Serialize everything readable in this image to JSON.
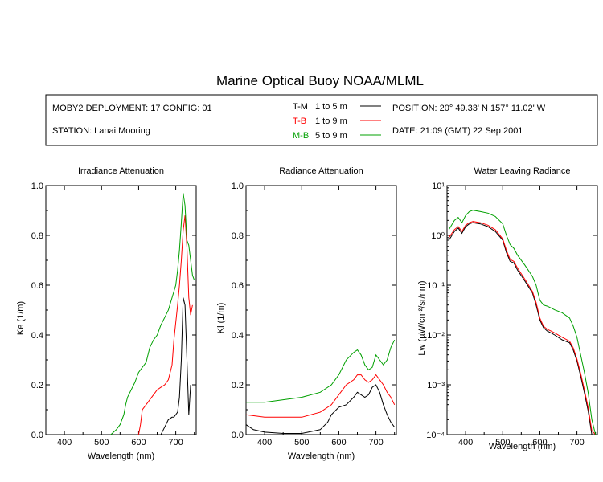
{
  "title": "Marine Optical Buoy NOAA/MLML",
  "info": {
    "deployment": "MOBY2 DEPLOYMENT: 17 CONFIG: 01",
    "station": "STATION: Lanai Mooring",
    "position": "POSITION: 20° 49.33' N   157° 11.02' W",
    "date": "DATE: 21:09 (GMT) 22 Sep 2001"
  },
  "legend": [
    {
      "code": "T-M",
      "range": "1 to 5  m",
      "color": "#000000"
    },
    {
      "code": "T-B",
      "range": "1 to 9  m",
      "color": "#ff0000"
    },
    {
      "code": "M-B",
      "range": "5 to 9  m",
      "color": "#00a000"
    }
  ],
  "chart_data": [
    {
      "type": "line",
      "title": "Irradiance Attenuation",
      "xlabel": "Wavelength (nm)",
      "ylabel": "Ke  (1/m)",
      "xlim": [
        350,
        755
      ],
      "ylim": [
        0,
        1
      ],
      "xticks": [
        "400",
        "500",
        "600",
        "700"
      ],
      "yticks": [
        "0.0",
        "0.2",
        "0.4",
        "0.6",
        "0.8",
        "1.0"
      ],
      "series": [
        {
          "name": "T-M",
          "color": "#000000",
          "x": [
            660,
            670,
            680,
            690,
            695,
            700,
            705,
            710,
            715,
            720,
            725,
            730,
            735,
            740
          ],
          "y": [
            0.0,
            0.03,
            0.06,
            0.07,
            0.07,
            0.08,
            0.09,
            0.15,
            0.3,
            0.55,
            0.52,
            0.3,
            0.08,
            0.2
          ]
        },
        {
          "name": "T-B",
          "color": "#ff0000",
          "x": [
            600,
            605,
            610,
            620,
            630,
            640,
            650,
            660,
            670,
            680,
            690,
            695,
            700,
            705,
            710,
            715,
            720,
            725,
            730,
            735,
            740,
            745
          ],
          "y": [
            0.0,
            0.04,
            0.1,
            0.12,
            0.14,
            0.16,
            0.18,
            0.19,
            0.2,
            0.22,
            0.28,
            0.38,
            0.45,
            0.52,
            0.6,
            0.7,
            0.82,
            0.88,
            0.75,
            0.55,
            0.48,
            0.52
          ]
        },
        {
          "name": "M-B",
          "color": "#00a000",
          "x": [
            525,
            540,
            550,
            560,
            565,
            570,
            580,
            590,
            600,
            605,
            610,
            615,
            620,
            630,
            640,
            650,
            660,
            670,
            680,
            690,
            700,
            705,
            710,
            715,
            720,
            725,
            730,
            735,
            740,
            745,
            750
          ],
          "y": [
            0.0,
            0.02,
            0.04,
            0.08,
            0.12,
            0.15,
            0.18,
            0.21,
            0.25,
            0.26,
            0.27,
            0.28,
            0.29,
            0.35,
            0.38,
            0.4,
            0.44,
            0.47,
            0.5,
            0.55,
            0.6,
            0.66,
            0.74,
            0.85,
            0.97,
            0.92,
            0.78,
            0.76,
            0.7,
            0.64,
            0.62
          ]
        }
      ]
    },
    {
      "type": "line",
      "title": "Radiance Attenuation",
      "xlabel": "Wavelength (nm)",
      "ylabel": "Kl  (1/m)",
      "xlim": [
        350,
        755
      ],
      "ylim": [
        0,
        1
      ],
      "xticks": [
        "400",
        "500",
        "600",
        "700"
      ],
      "yticks": [
        "0.0",
        "0.2",
        "0.4",
        "0.6",
        "0.8",
        "1.0"
      ],
      "series": [
        {
          "name": "T-M",
          "color": "#000000",
          "x": [
            350,
            370,
            400,
            450,
            500,
            550,
            570,
            580,
            600,
            620,
            640,
            650,
            660,
            670,
            680,
            690,
            700,
            710,
            720,
            730,
            740,
            750
          ],
          "y": [
            0.04,
            0.02,
            0.01,
            0.005,
            0.005,
            0.02,
            0.05,
            0.08,
            0.11,
            0.12,
            0.15,
            0.17,
            0.16,
            0.15,
            0.16,
            0.19,
            0.2,
            0.17,
            0.12,
            0.08,
            0.05,
            0.03
          ]
        },
        {
          "name": "T-B",
          "color": "#ff0000",
          "x": [
            350,
            400,
            450,
            500,
            550,
            580,
            600,
            620,
            640,
            650,
            660,
            670,
            680,
            690,
            700,
            710,
            720,
            730,
            740,
            750
          ],
          "y": [
            0.08,
            0.07,
            0.07,
            0.07,
            0.09,
            0.12,
            0.16,
            0.2,
            0.22,
            0.24,
            0.24,
            0.22,
            0.21,
            0.22,
            0.24,
            0.22,
            0.2,
            0.17,
            0.15,
            0.12
          ]
        },
        {
          "name": "M-B",
          "color": "#00a000",
          "x": [
            350,
            400,
            450,
            500,
            550,
            580,
            600,
            620,
            640,
            650,
            660,
            670,
            680,
            690,
            700,
            710,
            720,
            730,
            740,
            750
          ],
          "y": [
            0.13,
            0.13,
            0.14,
            0.15,
            0.17,
            0.2,
            0.24,
            0.3,
            0.33,
            0.34,
            0.32,
            0.28,
            0.26,
            0.27,
            0.32,
            0.3,
            0.28,
            0.3,
            0.35,
            0.38
          ]
        }
      ]
    },
    {
      "type": "line",
      "title": "Water Leaving Radiance",
      "xlabel": "Wavelength (nm)",
      "ylabel": "Lw  (µW/cm²/sr/nm)",
      "yscale": "log",
      "xlim": [
        350,
        755
      ],
      "ylim": [
        0.0001,
        10
      ],
      "xticks": [
        "400",
        "500",
        "600",
        "700"
      ],
      "yticks": [
        "10⁻⁴",
        "10⁻³",
        "10⁻²",
        "10⁻¹",
        "10⁰",
        "10¹"
      ],
      "series": [
        {
          "name": "T-M",
          "color": "#000000",
          "x": [
            355,
            370,
            380,
            390,
            400,
            410,
            420,
            440,
            460,
            480,
            500,
            510,
            520,
            530,
            540,
            560,
            580,
            590,
            600,
            610,
            620,
            630,
            640,
            660,
            680,
            690,
            700,
            710,
            720,
            730,
            740,
            750
          ],
          "y": [
            0.8,
            1.2,
            1.4,
            1.1,
            1.5,
            1.7,
            1.8,
            1.7,
            1.5,
            1.2,
            0.8,
            0.45,
            0.3,
            0.28,
            0.2,
            0.12,
            0.07,
            0.04,
            0.02,
            0.014,
            0.012,
            0.011,
            0.01,
            0.008,
            0.007,
            0.005,
            0.003,
            0.0015,
            0.0007,
            0.0003,
            0.0001,
            0.0001
          ]
        },
        {
          "name": "T-B",
          "color": "#ff0000",
          "x": [
            355,
            370,
            380,
            390,
            400,
            410,
            420,
            440,
            460,
            480,
            500,
            510,
            520,
            530,
            540,
            560,
            580,
            590,
            600,
            610,
            620,
            630,
            640,
            660,
            680,
            690,
            700,
            710,
            720,
            730,
            740,
            750
          ],
          "y": [
            0.9,
            1.3,
            1.5,
            1.2,
            1.6,
            1.8,
            1.9,
            1.8,
            1.6,
            1.3,
            0.85,
            0.5,
            0.33,
            0.3,
            0.22,
            0.13,
            0.075,
            0.045,
            0.022,
            0.015,
            0.013,
            0.012,
            0.011,
            0.009,
            0.0075,
            0.0055,
            0.0033,
            0.0017,
            0.0008,
            0.00035,
            0.00012,
            0.0001
          ]
        },
        {
          "name": "M-B",
          "color": "#00a000",
          "x": [
            355,
            370,
            380,
            390,
            400,
            410,
            420,
            440,
            460,
            480,
            500,
            510,
            520,
            530,
            540,
            560,
            580,
            590,
            600,
            610,
            620,
            630,
            640,
            660,
            680,
            690,
            700,
            710,
            720,
            730,
            740,
            750
          ],
          "y": [
            1.3,
            2.0,
            2.3,
            1.8,
            2.5,
            3.0,
            3.2,
            3.0,
            2.8,
            2.4,
            1.7,
            1.0,
            0.65,
            0.55,
            0.4,
            0.25,
            0.15,
            0.1,
            0.05,
            0.04,
            0.038,
            0.035,
            0.032,
            0.028,
            0.022,
            0.015,
            0.009,
            0.004,
            0.0018,
            0.0007,
            0.0002,
            0.0001
          ]
        }
      ]
    }
  ]
}
